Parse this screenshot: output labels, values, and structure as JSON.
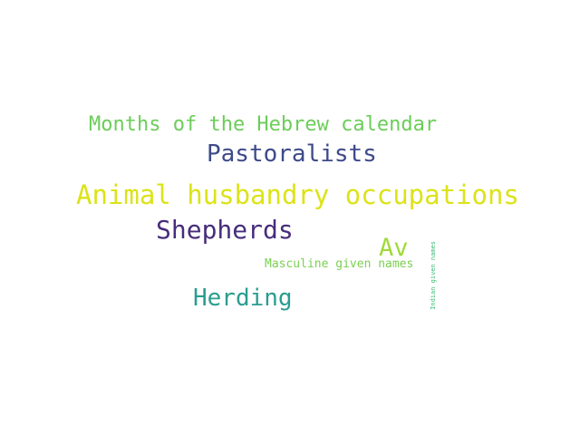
{
  "word_cloud": {
    "words": [
      {
        "text": "Months of the Hebrew calendar",
        "color": "#6ccd5a"
      },
      {
        "text": "Pastoralists",
        "color": "#3e4a89"
      },
      {
        "text": "Animal husbandry occupations",
        "color": "#dce319"
      },
      {
        "text": "Shepherds",
        "color": "#472d7b"
      },
      {
        "text": "Av",
        "color": "#a0da39"
      },
      {
        "text": "Masculine given names",
        "color": "#7ad151"
      },
      {
        "text": "Herding",
        "color": "#2a9d8f"
      },
      {
        "text": "Indian given names",
        "color": "#3bbb75"
      }
    ]
  }
}
